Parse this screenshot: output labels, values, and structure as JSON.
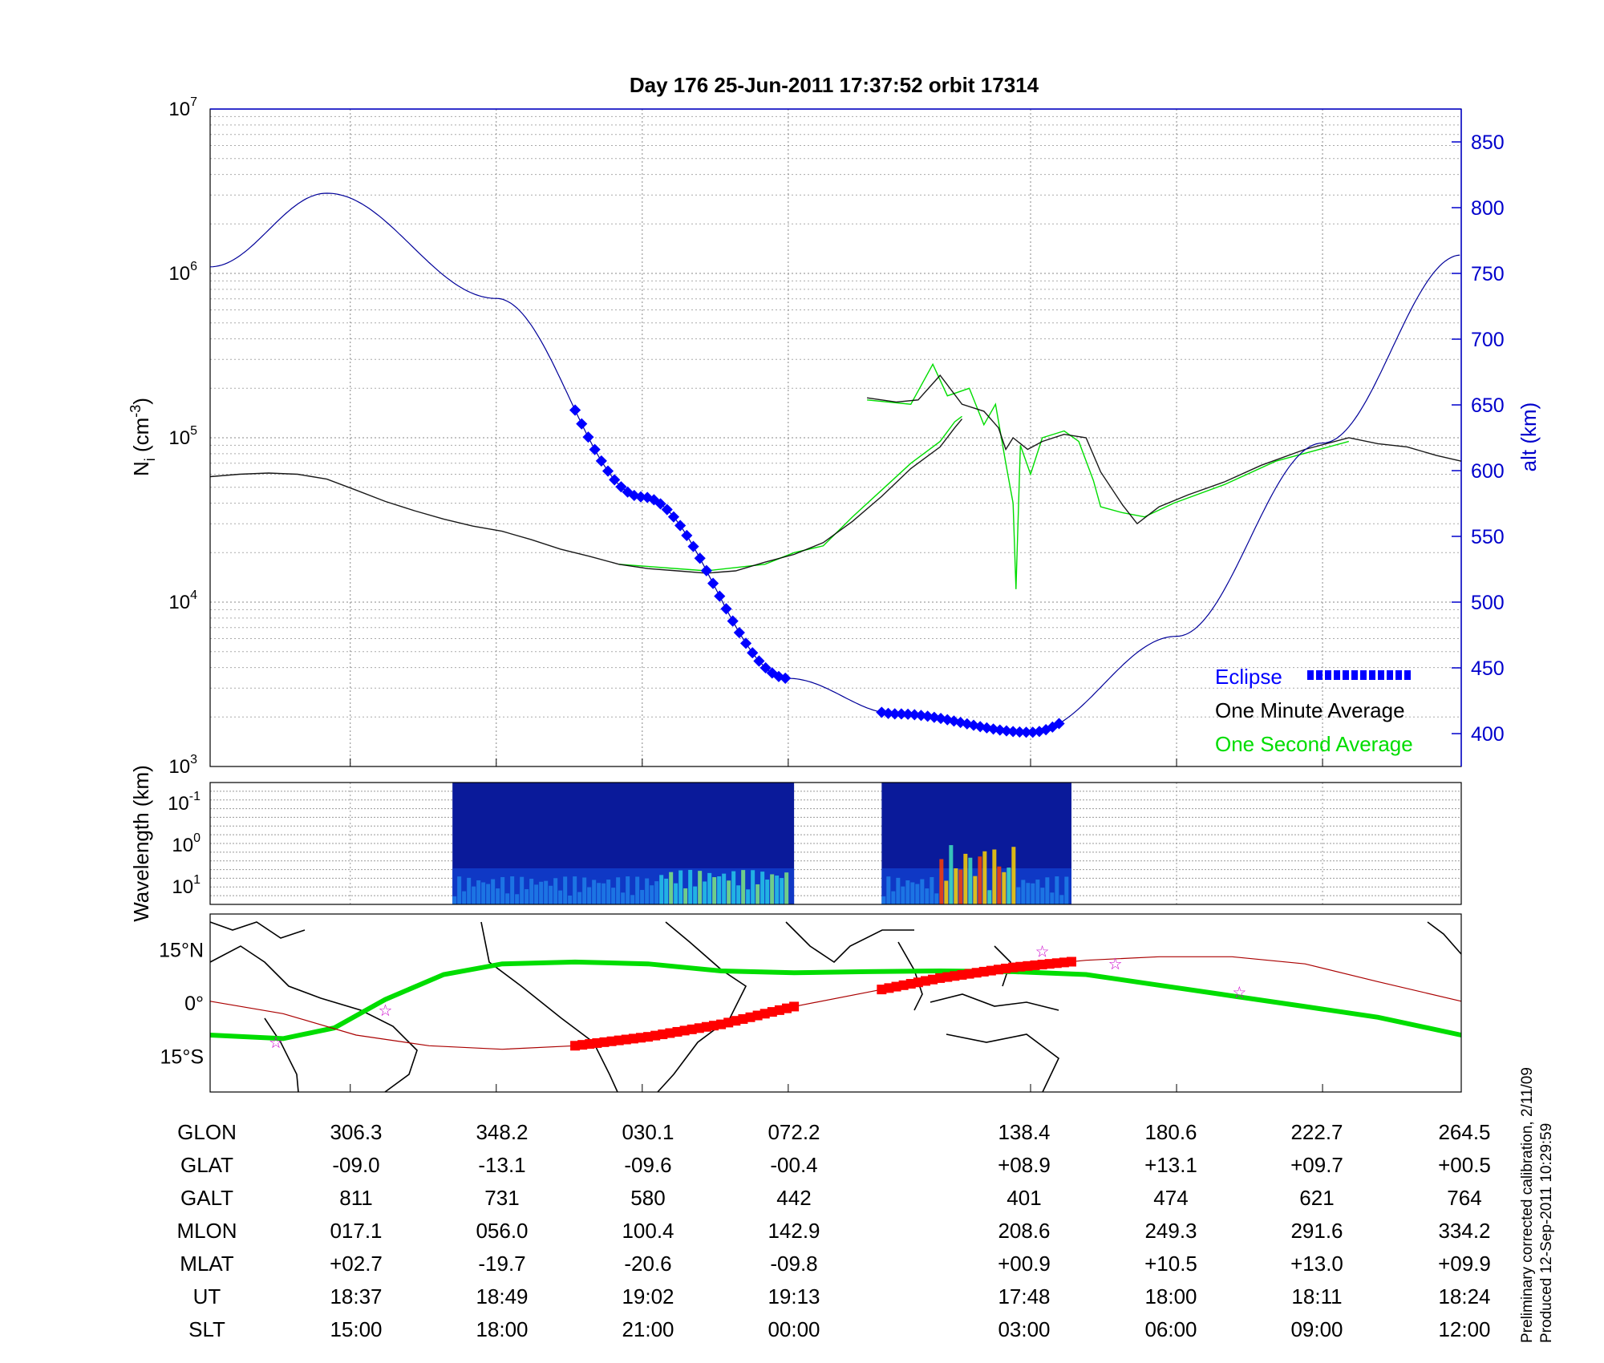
{
  "title": "Day 176  25-Jun-2011 17:37:52   orbit 17314",
  "credit": [
    "Preliminary corrected calibration, 2/11/09",
    "Produced 12-Sep-2011 10:29:59"
  ],
  "colors": {
    "eclipse": "#0000ff",
    "minute": "#000000",
    "second": "#00dd00",
    "alt": "#000099",
    "track": "#aa0000",
    "eclipse_track": "#ff0000",
    "star": "#cc00cc"
  },
  "chart_data": [
    {
      "type": "line",
      "name": "density",
      "xlim": [
        0,
        8.57
      ],
      "ylim": [
        1000,
        10000000
      ],
      "yscale": "log",
      "ylabel": "N_i (cm^-3)",
      "yticks": [
        "10^3",
        "10^4",
        "10^5",
        "10^6",
        "10^7"
      ],
      "y2label": "alt (km)",
      "y2lim": [
        375,
        875
      ],
      "y2ticks": [
        400,
        450,
        500,
        550,
        600,
        650,
        700,
        750,
        800,
        850
      ],
      "legend": [
        "Eclipse",
        "One Minute Average",
        "One Second Average"
      ],
      "legend_position": "bottom-right",
      "grid": true,
      "series": [
        {
          "name": "One Minute Average",
          "segments": [
            [
              [
                0,
                58000
              ],
              [
                0.2,
                60000
              ],
              [
                0.4,
                61000
              ],
              [
                0.6,
                60000
              ],
              [
                0.8,
                56000
              ],
              [
                1.0,
                48000
              ],
              [
                1.2,
                41000
              ],
              [
                1.4,
                36000
              ],
              [
                1.6,
                32000
              ],
              [
                1.8,
                29000
              ],
              [
                2.0,
                27000
              ],
              [
                2.2,
                24000
              ],
              [
                2.4,
                21000
              ],
              [
                2.6,
                19000
              ],
              [
                2.8,
                17000
              ],
              [
                3.0,
                16000
              ],
              [
                3.2,
                15500
              ],
              [
                3.4,
                15000
              ],
              [
                3.6,
                15500
              ],
              [
                3.8,
                17500
              ],
              [
                4.0,
                19500
              ],
              [
                4.2,
                23000
              ],
              [
                4.4,
                31000
              ],
              [
                4.6,
                44000
              ],
              [
                4.8,
                65000
              ],
              [
                5.0,
                88000
              ],
              [
                5.1,
                115000
              ],
              [
                5.15,
                130000
              ]
            ],
            [
              [
                4.5,
                175000
              ],
              [
                4.7,
                165000
              ],
              [
                4.85,
                170000
              ],
              [
                5.0,
                240000
              ],
              [
                5.15,
                160000
              ],
              [
                5.3,
                145000
              ],
              [
                5.4,
                115000
              ],
              [
                5.45,
                85000
              ],
              [
                5.5,
                100000
              ],
              [
                5.6,
                85000
              ],
              [
                5.7,
                95000
              ],
              [
                5.85,
                105000
              ],
              [
                6.0,
                100000
              ],
              [
                6.1,
                62000
              ],
              [
                6.25,
                39000
              ],
              [
                6.35,
                30000
              ],
              [
                6.5,
                38000
              ],
              [
                6.7,
                45000
              ],
              [
                6.95,
                54000
              ],
              [
                7.2,
                68000
              ],
              [
                7.5,
                85000
              ],
              [
                7.8,
                100000
              ],
              [
                8.0,
                92000
              ],
              [
                8.2,
                88000
              ],
              [
                8.4,
                78000
              ],
              [
                8.57,
                72000
              ]
            ]
          ]
        },
        {
          "name": "One Second Average",
          "segments": [
            [
              [
                2.8,
                17000
              ],
              [
                3.4,
                15500
              ],
              [
                3.8,
                17000
              ],
              [
                4.0,
                20000
              ],
              [
                4.2,
                22000
              ],
              [
                4.4,
                33000
              ],
              [
                4.6,
                48000
              ],
              [
                4.8,
                70000
              ],
              [
                5.0,
                95000
              ],
              [
                5.1,
                125000
              ],
              [
                5.15,
                135000
              ]
            ],
            [
              [
                4.5,
                170000
              ],
              [
                4.8,
                160000
              ],
              [
                4.95,
                280000
              ],
              [
                5.05,
                180000
              ],
              [
                5.2,
                200000
              ],
              [
                5.3,
                120000
              ],
              [
                5.38,
                160000
              ],
              [
                5.45,
                70000
              ],
              [
                5.5,
                40000
              ],
              [
                5.52,
                12000
              ],
              [
                5.55,
                90000
              ],
              [
                5.62,
                60000
              ],
              [
                5.7,
                100000
              ],
              [
                5.85,
                110000
              ],
              [
                5.95,
                95000
              ],
              [
                6.05,
                55000
              ],
              [
                6.1,
                38000
              ],
              [
                6.25,
                35000
              ],
              [
                6.4,
                33000
              ],
              [
                6.6,
                40000
              ],
              [
                6.95,
                52000
              ],
              [
                7.3,
                72000
              ],
              [
                7.8,
                95000
              ]
            ]
          ]
        },
        {
          "name": "altitude",
          "axis": "alt",
          "x_minutes": [
            0.0,
            0.8,
            1.96,
            2.96,
            3.96,
            4.7,
            5.62,
            6.62,
            7.62,
            8.57
          ],
          "values": [
            755,
            811,
            731,
            580,
            442,
            415,
            401,
            474,
            621,
            764
          ]
        },
        {
          "name": "Eclipse",
          "axis": "alt",
          "segments": [
            [
              2.5,
              3.96
            ],
            [
              4.6,
              5.85
            ]
          ]
        }
      ]
    },
    {
      "type": "heatmap",
      "name": "spectrogram",
      "ylabel": "Wavelength (km)",
      "yticks": [
        "10^-1",
        "10^0",
        "10^1"
      ],
      "blocks": [
        [
          1.66,
          4.0
        ],
        [
          4.6,
          5.9
        ]
      ]
    },
    {
      "type": "line",
      "name": "map",
      "yticks": [
        "15°N",
        "0°",
        "15°S"
      ],
      "ylim": [
        -25,
        25
      ],
      "series": [
        {
          "name": "magnetic equator",
          "points": [
            [
              0,
              -9
            ],
            [
              0.5,
              -10
            ],
            [
              0.85,
              -7
            ],
            [
              1.2,
              1
            ],
            [
              1.6,
              8
            ],
            [
              2.0,
              11
            ],
            [
              2.5,
              11.5
            ],
            [
              3.0,
              11
            ],
            [
              3.5,
              9
            ],
            [
              4.0,
              8.5
            ],
            [
              4.5,
              8.8
            ],
            [
              5.0,
              9
            ],
            [
              5.5,
              8.8
            ],
            [
              6.0,
              8
            ],
            [
              6.5,
              5
            ],
            [
              7.0,
              2
            ],
            [
              7.5,
              -1
            ],
            [
              8.0,
              -4
            ],
            [
              8.57,
              -9
            ]
          ]
        },
        {
          "name": "orbit track",
          "points": [
            [
              0,
              0.5
            ],
            [
              0.5,
              -3
            ],
            [
              1.0,
              -9
            ],
            [
              1.5,
              -12
            ],
            [
              2.0,
              -13
            ],
            [
              2.5,
              -12
            ],
            [
              3.0,
              -9.5
            ],
            [
              3.5,
              -6
            ],
            [
              4.0,
              -1
            ],
            [
              4.5,
              3
            ],
            [
              5.0,
              7
            ],
            [
              5.5,
              10
            ],
            [
              6.0,
              12
            ],
            [
              6.5,
              13
            ],
            [
              7.0,
              13
            ],
            [
              7.5,
              11
            ],
            [
              8.0,
              6
            ],
            [
              8.57,
              0.5
            ]
          ]
        }
      ],
      "eclipse_track_segments": [
        [
          2.5,
          4.0
        ],
        [
          4.6,
          5.9
        ]
      ],
      "stars": [
        [
          0.45,
          -11
        ],
        [
          1.2,
          -2
        ],
        [
          5.7,
          14.5
        ],
        [
          6.2,
          11
        ],
        [
          7.05,
          3
        ]
      ]
    }
  ],
  "table": {
    "labels": [
      "GLON",
      "GLAT",
      "GALT",
      "MLON",
      "MLAT",
      "UT",
      "SLT"
    ],
    "columns": [
      [
        "306.3",
        "-09.0",
        "811",
        "017.1",
        "+02.7",
        "18:37",
        "15:00"
      ],
      [
        "348.2",
        "-13.1",
        "731",
        "056.0",
        "-19.7",
        "18:49",
        "18:00"
      ],
      [
        "030.1",
        "-09.6",
        "580",
        "100.4",
        "-20.6",
        "19:02",
        "21:00"
      ],
      [
        "072.2",
        "-00.4",
        "442",
        "142.9",
        "-09.8",
        "19:13",
        "00:00"
      ],
      [
        "138.4",
        "+08.9",
        "401",
        "208.6",
        "+00.9",
        "17:48",
        "03:00"
      ],
      [
        "180.6",
        "+13.1",
        "474",
        "249.3",
        "+10.5",
        "18:00",
        "06:00"
      ],
      [
        "222.7",
        "+09.7",
        "621",
        "291.6",
        "+13.0",
        "18:11",
        "09:00"
      ],
      [
        "264.5",
        "+00.5",
        "764",
        "334.2",
        "+09.9",
        "18:24",
        "12:00"
      ]
    ]
  }
}
